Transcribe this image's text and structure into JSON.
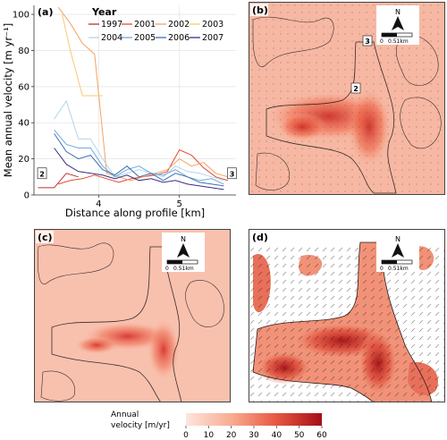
{
  "panels": {
    "a": "(a)",
    "b": "(b)",
    "c": "(c)",
    "d": "(d)"
  },
  "map_inset": {
    "north": "N",
    "scale_zero": "0",
    "scale_text": "0.51km"
  },
  "map_markers": {
    "two": "2",
    "three": "3"
  },
  "colorbar": {
    "title_line1": "Annual",
    "title_line2": "velocity [m/yr]",
    "ticks": [
      "0",
      "10",
      "20",
      "30",
      "40",
      "50",
      "60"
    ],
    "low_color": "#fde6dc",
    "high_color": "#a50f15"
  },
  "chart_data": {
    "type": "line",
    "legend_title": "Year",
    "xlabel": "Distance along profile [km]",
    "ylabel": "Mean annual velocity [m yr⁻¹]",
    "xlim": [
      3.2,
      5.7
    ],
    "ylim": [
      0,
      105
    ],
    "xticks": [
      "4",
      "5"
    ],
    "xtick_values": [
      4,
      5
    ],
    "yticks": [
      "0",
      "20",
      "40",
      "60",
      "80",
      "100"
    ],
    "ytick_values": [
      0,
      20,
      40,
      60,
      80,
      100
    ],
    "grid": true,
    "legend_placement": "top-right",
    "profile_markers": [
      {
        "label": "2",
        "x": 3.3,
        "y": 12
      },
      {
        "label": "3",
        "x": 5.65,
        "y": 12
      }
    ],
    "series": [
      {
        "name": "1997",
        "color": "#c42e2e",
        "x": [
          3.25,
          3.45,
          3.6,
          3.75
        ],
        "y": [
          4,
          4,
          12,
          10
        ]
      },
      {
        "name": "2001",
        "color": "#e34a33",
        "x": [
          3.5,
          3.65,
          3.8,
          3.95,
          4.1,
          4.25,
          4.4,
          4.55,
          4.7,
          4.85,
          5.0,
          5.15,
          5.3,
          5.45,
          5.6
        ],
        "y": [
          6,
          8,
          9,
          11,
          9,
          7,
          9,
          10,
          11,
          13,
          25,
          22,
          15,
          10,
          8
        ]
      },
      {
        "name": "2002",
        "color": "#f4a261",
        "x": [
          3.5,
          3.65,
          3.8,
          3.95,
          4.1,
          4.25,
          4.4,
          4.55,
          4.7,
          4.85,
          5.0,
          5.15,
          5.3,
          5.45,
          5.6
        ],
        "y": [
          104,
          95,
          84,
          78,
          12,
          10,
          8,
          10,
          12,
          14,
          20,
          16,
          18,
          12,
          10
        ]
      },
      {
        "name": "2003",
        "color": "#f7c873",
        "x": [
          3.55,
          3.65,
          3.8,
          3.95,
          4.05
        ],
        "y": [
          100,
          80,
          55,
          55,
          55
        ]
      },
      {
        "name": "2004",
        "color": "#b3d4ec",
        "x": [
          3.45,
          3.6,
          3.75,
          3.9,
          4.05,
          4.2,
          4.35,
          4.5,
          4.65,
          4.8,
          4.95,
          5.1,
          5.25,
          5.4,
          5.55
        ],
        "y": [
          42,
          52,
          31,
          31,
          20,
          10,
          12,
          14,
          12,
          10,
          16,
          13,
          12,
          10,
          8
        ]
      },
      {
        "name": "2005",
        "color": "#6fa8dc",
        "x": [
          3.45,
          3.6,
          3.75,
          3.9,
          4.05,
          4.2,
          4.35,
          4.5,
          4.65,
          4.8,
          4.95,
          5.1,
          5.25,
          5.4,
          5.55
        ],
        "y": [
          36,
          28,
          26,
          26,
          16,
          10,
          14,
          16,
          12,
          11,
          14,
          10,
          8,
          9,
          6
        ]
      },
      {
        "name": "2006",
        "color": "#3f6fb5",
        "x": [
          3.45,
          3.6,
          3.75,
          3.9,
          4.05,
          4.2,
          4.35,
          4.5,
          4.65,
          4.8,
          4.95,
          5.1,
          5.25,
          5.4,
          5.55
        ],
        "y": [
          34,
          24,
          20,
          22,
          14,
          11,
          16,
          10,
          12,
          8,
          12,
          10,
          7,
          6,
          5
        ]
      },
      {
        "name": "2007",
        "color": "#3b2e83",
        "x": [
          3.45,
          3.6,
          3.75,
          3.9,
          4.05,
          4.2,
          4.35,
          4.5,
          4.65,
          4.8,
          4.95,
          5.1,
          5.25,
          5.4,
          5.55
        ],
        "y": [
          26,
          17,
          13,
          12,
          11,
          9,
          11,
          8,
          9,
          7,
          8,
          6,
          5,
          4,
          3
        ]
      }
    ]
  }
}
